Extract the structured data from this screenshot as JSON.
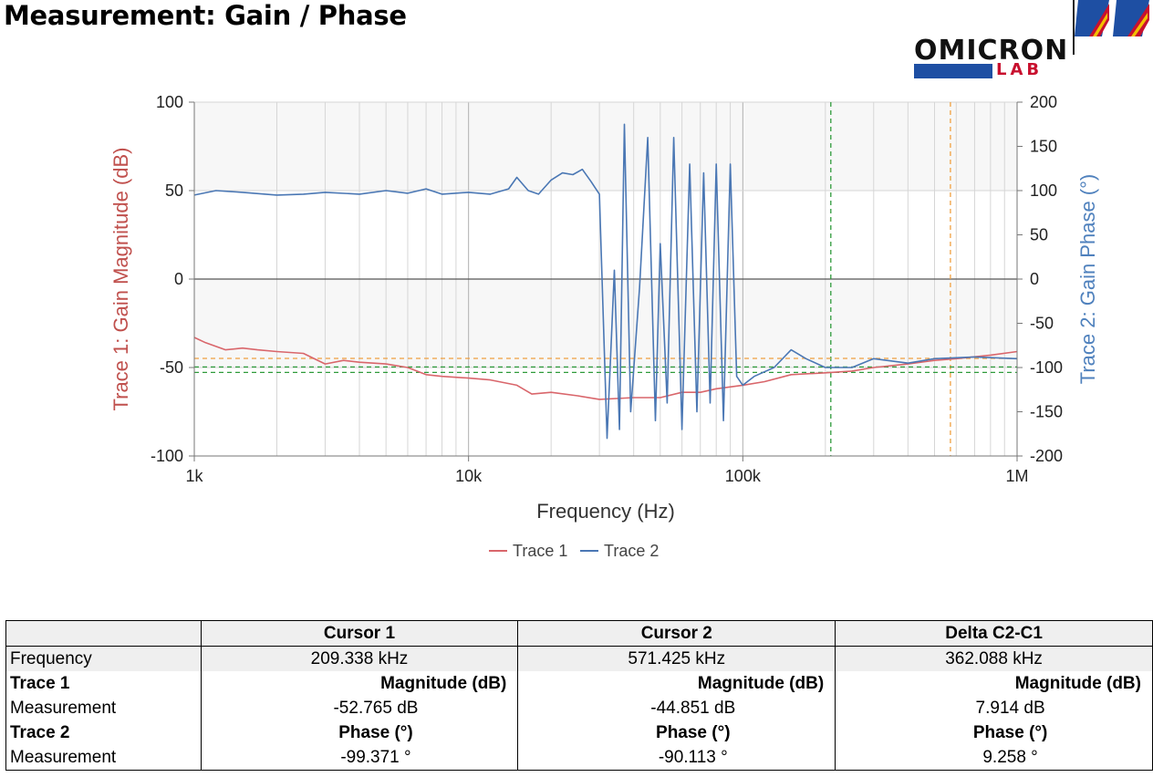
{
  "page": {
    "title": "Measurement: Gain / Phase"
  },
  "logo": {
    "brand": "OMICRON",
    "sub": "LAB",
    "colors": {
      "blue": "#1e4fa3",
      "red": "#c8102e",
      "yellow": "#f2c000"
    }
  },
  "chart_data": {
    "type": "line",
    "xlabel": "Frequency (Hz)",
    "x_scale": "log",
    "xlim": [
      1000,
      1000000
    ],
    "x_ticks": [
      "1k",
      "10k",
      "100k",
      "1M"
    ],
    "y_left": {
      "label": "Trace 1: Gain Magnitude (dB)",
      "ylim": [
        -100,
        100
      ],
      "ticks": [
        "100",
        "50",
        "0",
        "-50",
        "-100"
      ],
      "color": "#c0504d"
    },
    "y_right": {
      "label": "Trace 2: Gain Phase (°)",
      "ylim": [
        -200,
        200
      ],
      "ticks": [
        "200",
        "150",
        "100",
        "50",
        "0",
        "-50",
        "-100",
        "-150",
        "-200"
      ],
      "color": "#4f81bd"
    },
    "grid": true,
    "legend": {
      "placement": "bottom-center",
      "entries": [
        "Trace 1",
        "Trace 2"
      ]
    },
    "series": [
      {
        "name": "Trace 1",
        "axis": "left",
        "color": "#d9666b",
        "x": [
          1000,
          1100,
          1300,
          1500,
          1700,
          2000,
          2500,
          3000,
          3500,
          4000,
          5000,
          6000,
          7000,
          8000,
          10000,
          12000,
          15000,
          17000,
          20000,
          25000,
          30000,
          40000,
          50000,
          60000,
          70000,
          80000,
          100000,
          120000,
          150000,
          200000,
          250000,
          300000,
          400000,
          500000,
          600000,
          800000,
          1000000
        ],
        "values": [
          -33,
          -36,
          -40,
          -39,
          -40,
          -41,
          -42,
          -48,
          -46,
          -47,
          -48,
          -50,
          -54,
          -55,
          -56,
          -57,
          -60,
          -65,
          -64,
          -66,
          -68,
          -67,
          -67,
          -64,
          -64,
          -62,
          -60,
          -58,
          -54,
          -53,
          -52,
          -50,
          -48,
          -46,
          -45,
          -43,
          -41
        ]
      },
      {
        "name": "Trace 2",
        "axis": "right",
        "color": "#4a77b4",
        "x": [
          1000,
          1200,
          1500,
          2000,
          2500,
          3000,
          4000,
          5000,
          6000,
          7000,
          8000,
          10000,
          12000,
          14000,
          15000,
          16500,
          18000,
          20000,
          22000,
          24000,
          26000,
          28000,
          30000,
          32000,
          34000,
          35500,
          37000,
          39000,
          42000,
          45000,
          48000,
          50000,
          53000,
          56000,
          60000,
          64000,
          68000,
          72000,
          76000,
          80000,
          85000,
          90000,
          95000,
          100000,
          110000,
          130000,
          150000,
          170000,
          200000,
          250000,
          300000,
          400000,
          500000,
          700000,
          1000000
        ],
        "values": [
          95,
          100,
          98,
          95,
          96,
          98,
          96,
          100,
          97,
          102,
          96,
          98,
          96,
          102,
          115,
          100,
          96,
          112,
          120,
          118,
          124,
          110,
          96,
          -180,
          10,
          -170,
          175,
          -150,
          -10,
          160,
          -160,
          40,
          -140,
          160,
          -170,
          130,
          -150,
          120,
          -140,
          130,
          -160,
          130,
          -110,
          -120,
          -110,
          -100,
          -80,
          -90,
          -100,
          -100,
          -90,
          -95,
          -90,
          -88,
          -90
        ]
      }
    ],
    "cursors": {
      "cursor1_x": 209338,
      "cursor2_x": 571425,
      "cursor1_y": -52.765,
      "cursor2_y": -44.851,
      "cursor1_phase": -99.371,
      "cursor1_color": "#2e9a3a",
      "cursor2_color": "#f0a040"
    }
  },
  "table": {
    "headers": [
      "",
      "Cursor 1",
      "Cursor 2",
      "Delta C2-C1"
    ],
    "rows": {
      "frequency": {
        "label": "Frequency",
        "c1": "209.338 kHz",
        "c2": "571.425 kHz",
        "delta": "362.088 kHz"
      },
      "trace1": {
        "label": "Trace 1",
        "c1": "Magnitude (dB)",
        "c2": "Magnitude (dB)",
        "delta": "Magnitude (dB)"
      },
      "trace1_meas": {
        "label": "Measurement",
        "c1": "-52.765 dB",
        "c2": "-44.851 dB",
        "delta": "7.914 dB"
      },
      "trace2": {
        "label": "Trace 2",
        "c1": "Phase (°)",
        "c2": "Phase (°)",
        "delta": "Phase (°)"
      },
      "trace2_meas": {
        "label": "Measurement",
        "c1": "-99.371 °",
        "c2": "-90.113 °",
        "delta": "9.258 °"
      }
    }
  }
}
